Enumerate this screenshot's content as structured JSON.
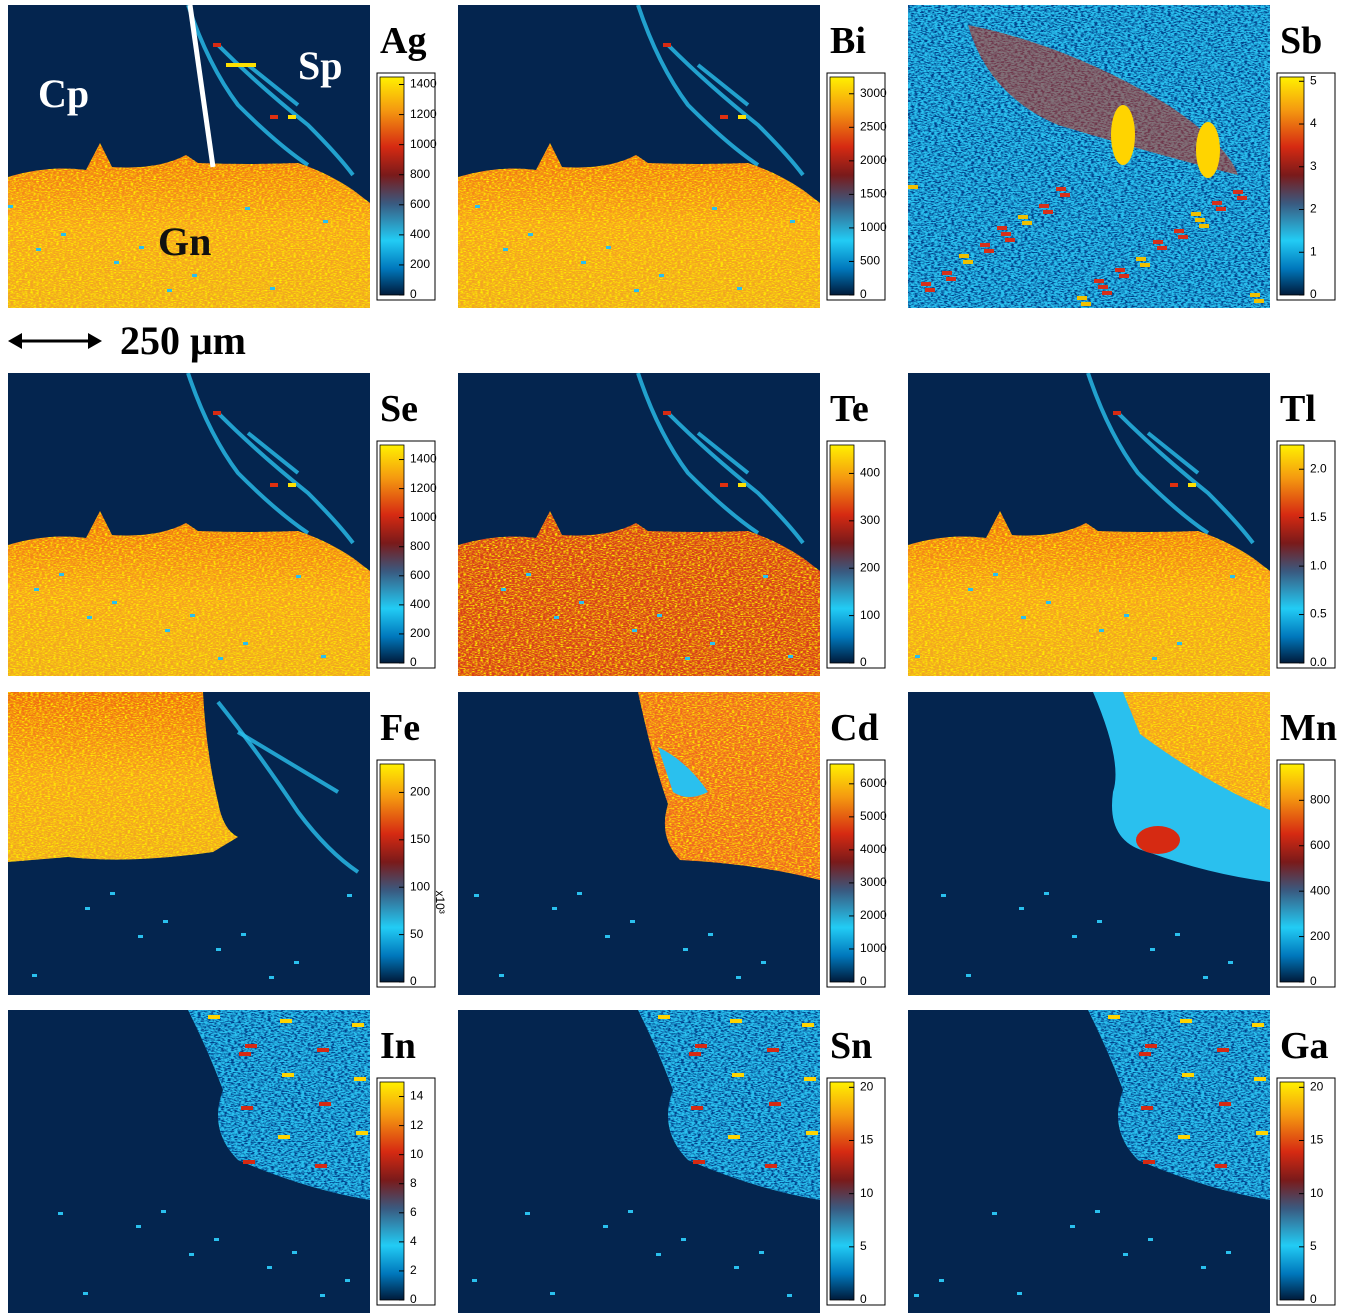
{
  "annotations": {
    "cp": "Cp",
    "sp": "Sp",
    "gn": "Gn",
    "scale_bar": "250 μm"
  },
  "panels": [
    {
      "element": "Ag",
      "lim": [
        0,
        1450
      ],
      "ticks": [
        0,
        200,
        400,
        600,
        800,
        1000,
        1200,
        1400
      ]
    },
    {
      "element": "Bi",
      "lim": [
        0,
        3250
      ],
      "ticks": [
        0,
        500,
        1000,
        1500,
        2000,
        2500,
        3000
      ]
    },
    {
      "element": "Sb",
      "lim": [
        0,
        5.1
      ],
      "ticks": [
        0,
        1,
        2,
        3,
        4,
        5
      ]
    },
    {
      "element": "Se",
      "lim": [
        0,
        1500
      ],
      "ticks": [
        0,
        200,
        400,
        600,
        800,
        1000,
        1200,
        1400
      ]
    },
    {
      "element": "Te",
      "lim": [
        0,
        460
      ],
      "ticks": [
        0,
        100,
        200,
        300,
        400
      ]
    },
    {
      "element": "Tl",
      "lim": [
        0,
        2.25
      ],
      "ticks": [
        {
          "value": 0,
          "label": "0.0"
        },
        {
          "value": 0.5,
          "label": "0.5"
        },
        {
          "value": 1,
          "label": "1.0"
        },
        {
          "value": 1.5,
          "label": "1.5"
        },
        {
          "value": 2,
          "label": "2.0"
        }
      ]
    },
    {
      "element": "Fe",
      "lim": [
        0,
        230
      ],
      "ticks": [
        0,
        50,
        100,
        150,
        200
      ],
      "multiplier": "x10³"
    },
    {
      "element": "Cd",
      "lim": [
        0,
        6600
      ],
      "ticks": [
        0,
        1000,
        2000,
        3000,
        4000,
        5000,
        6000
      ]
    },
    {
      "element": "Mn",
      "lim": [
        0,
        960
      ],
      "ticks": [
        0,
        200,
        400,
        600,
        800
      ]
    },
    {
      "element": "In",
      "lim": [
        0,
        15
      ],
      "ticks": [
        0,
        2,
        4,
        6,
        8,
        10,
        12,
        14
      ]
    },
    {
      "element": "Sn",
      "lim": [
        0,
        20.5
      ],
      "ticks": [
        0,
        5,
        10,
        15,
        20
      ]
    },
    {
      "element": "Ga",
      "lim": [
        0,
        20.5
      ],
      "ticks": [
        0,
        5,
        10,
        15,
        20
      ]
    }
  ]
}
